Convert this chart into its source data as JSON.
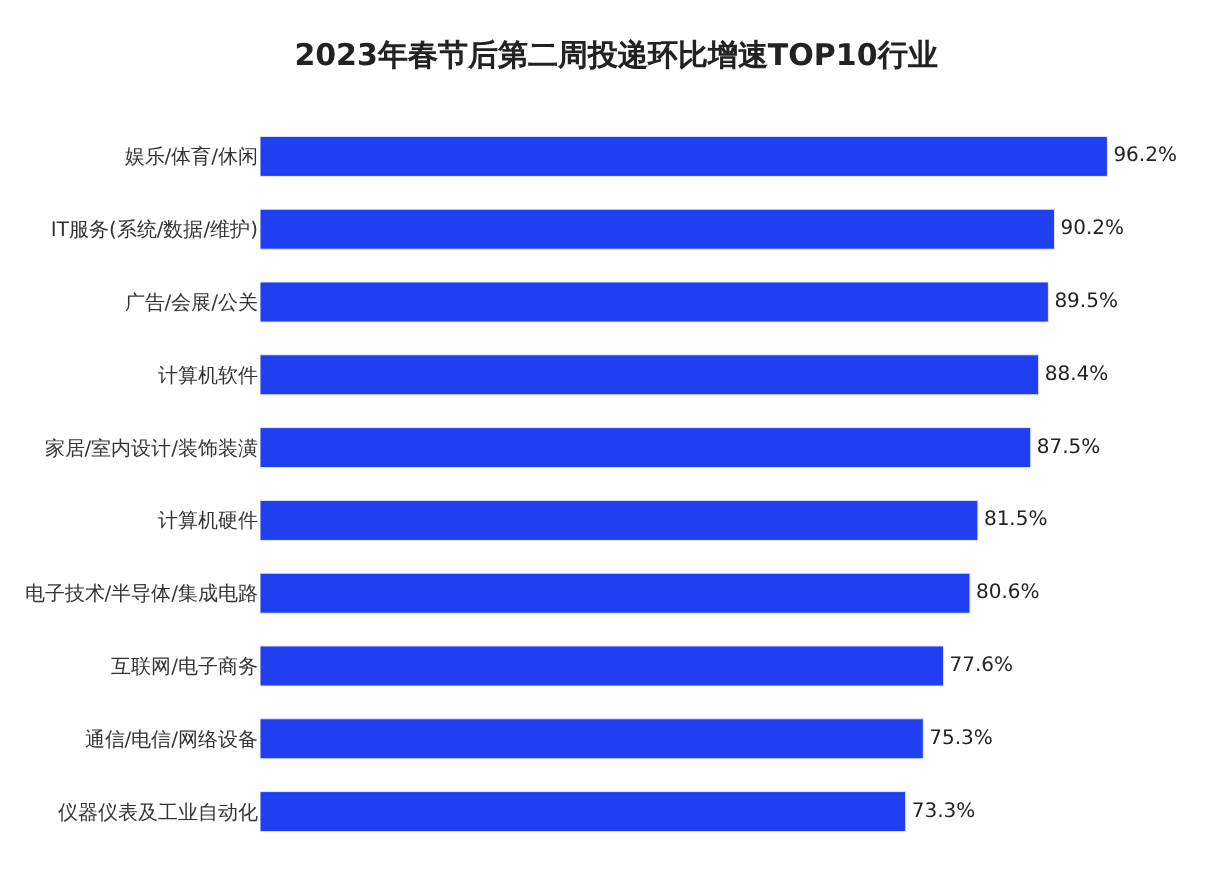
{
  "chart_data": {
    "type": "bar",
    "orientation": "horizontal",
    "title": "2023年春节后第二周投递环比增速TOP10行业",
    "categories": [
      "娱乐/体育/休闲",
      "IT服务(系统/数据/维护)",
      "广告/会展/公关",
      "计算机软件",
      "家居/室内设计/装饰装潢",
      "计算机硬件",
      "电子技术/半导体/集成电路",
      "互联网/电子商务",
      "通信/电信/网络设备",
      "仪器仪表及工业自动化"
    ],
    "values": [
      96.2,
      90.2,
      89.5,
      88.4,
      87.5,
      81.5,
      80.6,
      77.6,
      75.3,
      73.3
    ],
    "value_labels": [
      "96.2%",
      "90.2%",
      "89.5%",
      "88.4%",
      "87.5%",
      "81.5%",
      "80.6%",
      "77.6%",
      "75.3%",
      "73.3%"
    ],
    "color": "#1f3ff0",
    "tick_labels": "y"
  }
}
